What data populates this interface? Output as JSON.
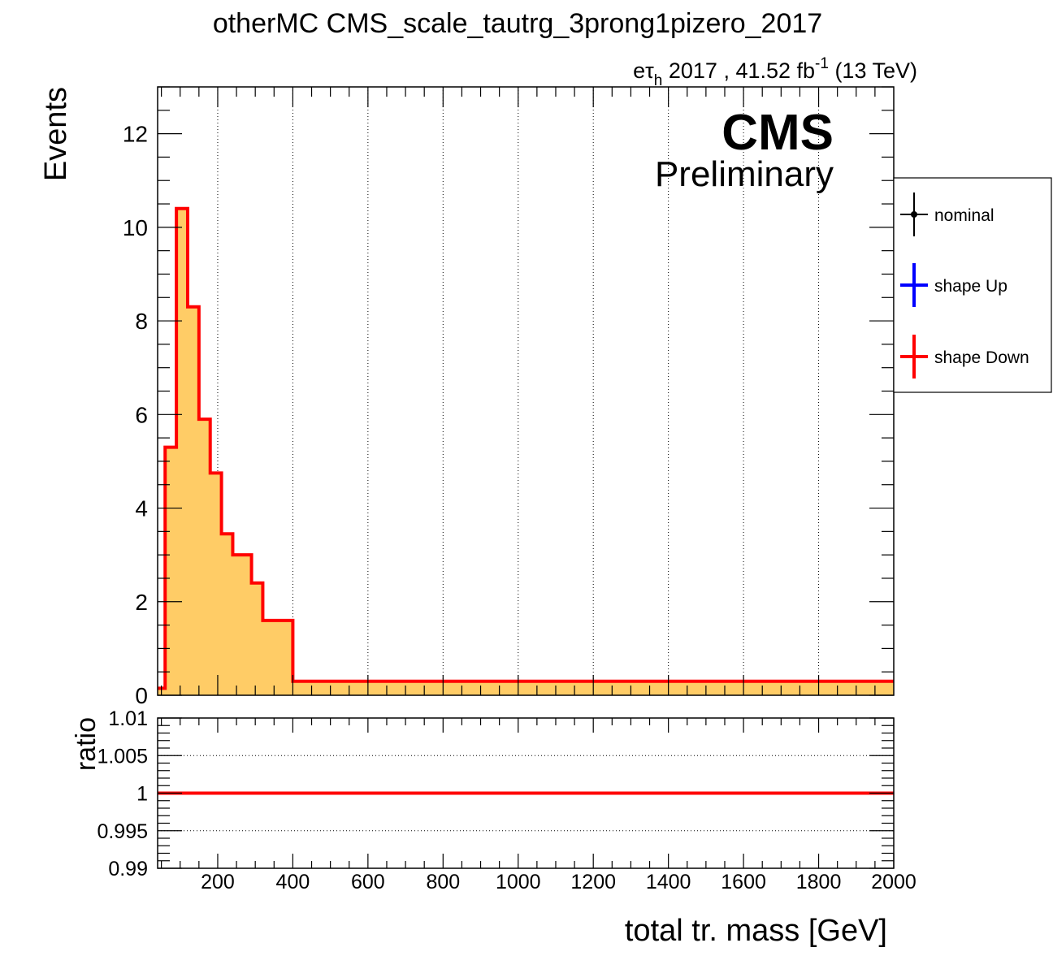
{
  "title": "otherMC CMS_scale_tautrg_3prong1pizero_2017",
  "lumi": {
    "prefix": "e",
    "tau": "τ",
    "tau_sub": "h",
    "text": " 2017 , 41.52 fb",
    "sup": "-1",
    "suffix": " (13 TeV)"
  },
  "cms_label": "CMS",
  "preliminary_label": "Preliminary",
  "colors": {
    "fill": "#ffcc66",
    "nominal": "#000000",
    "shape_up": "#0000ff",
    "shape_down": "#ff0000"
  },
  "chart_data": [
    {
      "type": "step-histogram",
      "ylabel": "Events",
      "xlim": [
        40,
        2000
      ],
      "ylim": [
        0,
        13
      ],
      "yticks": [
        0,
        2,
        4,
        6,
        8,
        10,
        12
      ],
      "xticks": [
        200,
        400,
        600,
        800,
        1000,
        1200,
        1400,
        1600,
        1800,
        2000
      ],
      "grid": "vertical dotted",
      "legend_position": "right, outside",
      "bin_edges": [
        40,
        60,
        90,
        120,
        150,
        180,
        210,
        240,
        290,
        320,
        400,
        2000
      ],
      "series": [
        {
          "name": "nominal",
          "color": "#000000",
          "values": [
            0.15,
            5.3,
            10.4,
            8.3,
            5.9,
            4.75,
            3.45,
            3.0,
            2.4,
            1.6,
            0.3
          ]
        },
        {
          "name": "shape Up",
          "color": "#0000ff",
          "values": [
            0.15,
            5.3,
            10.4,
            8.3,
            5.9,
            4.75,
            3.45,
            3.0,
            2.4,
            1.6,
            0.3
          ]
        },
        {
          "name": "shape Down",
          "color": "#ff0000",
          "values": [
            0.15,
            5.3,
            10.4,
            8.3,
            5.9,
            4.75,
            3.45,
            3.0,
            2.4,
            1.6,
            0.3
          ]
        }
      ]
    },
    {
      "type": "line",
      "ylabel": "ratio",
      "xlabel": "total tr. mass [GeV]",
      "xlim": [
        40,
        2000
      ],
      "ylim": [
        0.99,
        1.01
      ],
      "yticks": [
        0.99,
        0.995,
        1,
        1.005,
        1.01
      ],
      "ytick_labels": [
        "0.99",
        "0.995",
        "1",
        "1.005",
        "1.01"
      ],
      "xticks": [
        200,
        400,
        600,
        800,
        1000,
        1200,
        1400,
        1600,
        1800,
        2000
      ],
      "grid": "horizontal dotted",
      "series": [
        {
          "name": "ratio",
          "color": "#ff0000",
          "x": [
            40,
            2000
          ],
          "values": [
            1,
            1
          ]
        }
      ]
    }
  ]
}
